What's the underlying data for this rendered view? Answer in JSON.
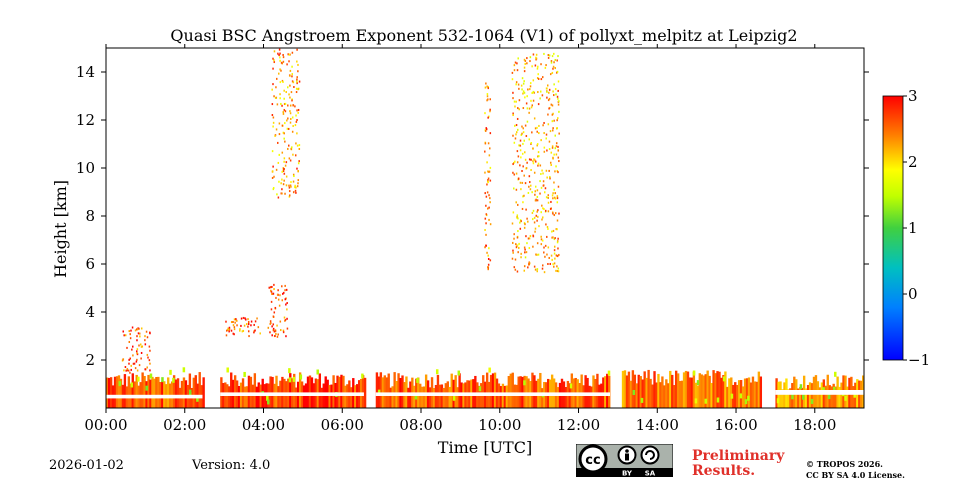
{
  "chart_data": {
    "type": "heatmap",
    "title": "Quasi BSC Angstroem Exponent 532-1064 (V1) of pollyxt_melpitz at Leipzig2",
    "xlabel": "Time [UTC]",
    "ylabel": "Height [km]",
    "xlim": [
      0,
      19.25
    ],
    "ylim": [
      0,
      15
    ],
    "x_ticks": [
      0,
      2,
      4,
      6,
      8,
      10,
      12,
      14,
      16,
      18
    ],
    "x_tick_labels": [
      "00:00",
      "02:00",
      "04:00",
      "06:00",
      "08:00",
      "10:00",
      "12:00",
      "14:00",
      "16:00",
      "18:00"
    ],
    "y_ticks": [
      2,
      4,
      6,
      8,
      10,
      12,
      14
    ],
    "y_tick_labels": [
      "2",
      "4",
      "6",
      "8",
      "10",
      "12",
      "14"
    ],
    "colorbar": {
      "range": [
        -1,
        3
      ],
      "ticks": [
        3,
        2,
        1,
        0,
        -1
      ],
      "tick_labels": [
        "3",
        "2",
        "1",
        "0",
        "−1"
      ],
      "colormap": "jet"
    },
    "cloud_blocks": [
      {
        "t0": 0.0,
        "t1": 2.45,
        "h0": 0.0,
        "h1": 1.5,
        "value": 2.6
      },
      {
        "t0": 2.9,
        "t1": 6.55,
        "h0": 0.0,
        "h1": 1.5,
        "value": 2.7
      },
      {
        "t0": 6.85,
        "t1": 12.8,
        "h0": 0.0,
        "h1": 1.5,
        "value": 2.6
      },
      {
        "t0": 13.1,
        "t1": 16.65,
        "h0": 0.0,
        "h1": 1.6,
        "value": 2.5
      },
      {
        "t0": 17.0,
        "t1": 19.25,
        "h0": 0.0,
        "h1": 1.4,
        "value": 2.4
      }
    ],
    "clear_bands": [
      {
        "t0": 0.0,
        "t1": 2.45,
        "h0": 0.4,
        "h1": 0.55
      },
      {
        "t0": 2.9,
        "t1": 6.55,
        "h0": 0.5,
        "h1": 0.65
      },
      {
        "t0": 6.85,
        "t1": 12.8,
        "h0": 0.5,
        "h1": 0.65
      },
      {
        "t0": 17.0,
        "t1": 19.25,
        "h0": 0.55,
        "h1": 0.75
      }
    ],
    "high_clouds": [
      {
        "t0": 4.2,
        "t1": 4.9,
        "h0": 8.8,
        "h1": 15.0,
        "value": 2.3
      },
      {
        "t0": 10.3,
        "t1": 11.5,
        "h0": 5.7,
        "h1": 14.8,
        "value": 2.2
      },
      {
        "t0": 9.6,
        "t1": 9.75,
        "h0": 5.8,
        "h1": 13.6,
        "value": 2.4
      },
      {
        "t0": 4.1,
        "t1": 4.6,
        "h0": 2.9,
        "h1": 5.2,
        "value": 2.7
      },
      {
        "t0": 3.0,
        "t1": 3.9,
        "h0": 3.0,
        "h1": 3.8,
        "value": 2.6
      },
      {
        "t0": 0.4,
        "t1": 1.1,
        "h0": 1.5,
        "h1": 3.4,
        "value": 2.6
      }
    ]
  },
  "footer": {
    "date": "2026-01-02",
    "version": "Version: 4.0",
    "preliminary_line1": "Preliminary",
    "preliminary_line2": "Results.",
    "copyright_line1": "© TROPOS 2026.",
    "copyright_line2": "CC BY SA 4.0 License.",
    "cc_text": "cc",
    "by_text": "BY",
    "sa_text": "SA"
  }
}
